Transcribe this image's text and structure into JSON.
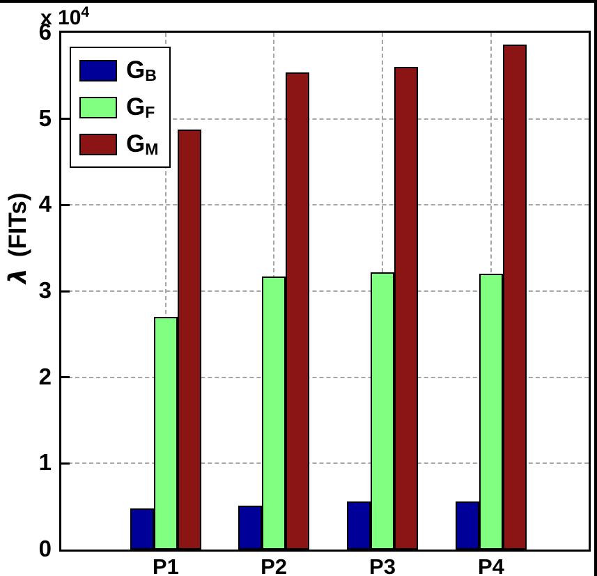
{
  "figure": {
    "y_multiplier": {
      "base": "x 10",
      "exp": "4"
    }
  },
  "chart_data": {
    "type": "bar",
    "title": "",
    "categories": [
      "P1",
      "P2",
      "P3",
      "P4"
    ],
    "series": [
      {
        "name": "G_B",
        "legend_main": "G",
        "legend_sub": "B",
        "color": "#000099",
        "values": [
          4800,
          5100,
          5600,
          5600
        ]
      },
      {
        "name": "G_F",
        "legend_main": "G",
        "legend_sub": "F",
        "color": "#80FF80",
        "values": [
          27000,
          31700,
          32200,
          32000
        ]
      },
      {
        "name": "G_M",
        "legend_main": "G",
        "legend_sub": "M",
        "color": "#8B1414",
        "values": [
          48800,
          55400,
          56000,
          58600
        ]
      }
    ],
    "xlabel": "",
    "ylabel": {
      "symbol": "λ",
      "text": "(FITs)"
    },
    "ylim": [
      0,
      60000
    ],
    "yticks": [
      "0",
      "1",
      "2",
      "3",
      "4",
      "5",
      "6"
    ],
    "ytick_values": [
      0,
      10000,
      20000,
      30000,
      40000,
      50000,
      60000
    ],
    "grid": true,
    "gridline_color": "#a6a6a6",
    "bar_edge_color": "#000000",
    "legend_position": "top-left"
  }
}
